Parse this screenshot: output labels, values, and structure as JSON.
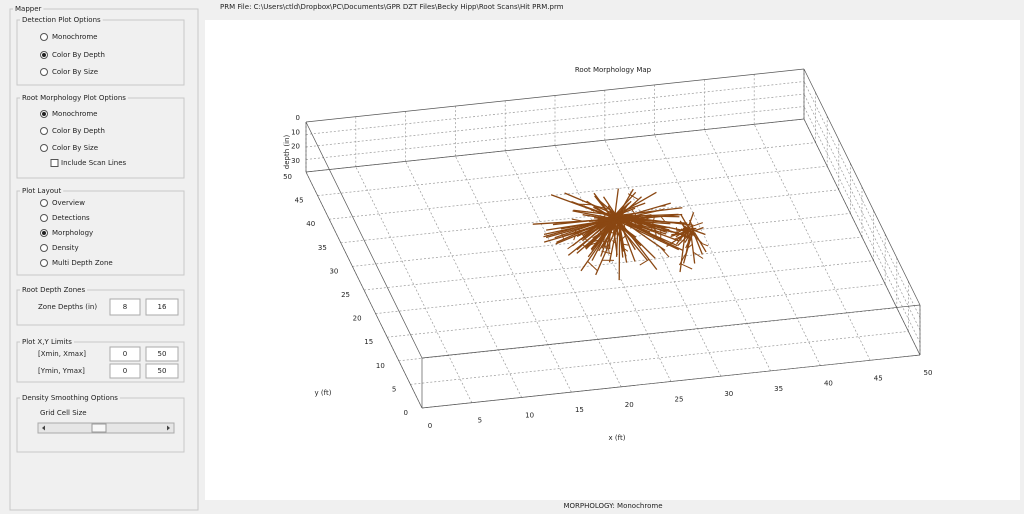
{
  "file_label": "PRM File: C:\\Users\\ctld\\Dropbox\\PC\\Documents\\GPR DZT Files\\Becky Hipp\\Root Scans\\Hit PRM.prm",
  "mapper": {
    "title": "Mapper",
    "detection_plot_options": {
      "title": "Detection Plot Options",
      "options": [
        "Monochrome",
        "Color By Depth",
        "Color By Size"
      ],
      "selected": 1
    },
    "root_morphology_plot_options": {
      "title": "Root Morphology Plot Options",
      "options": [
        "Monochrome",
        "Color By Depth",
        "Color By Size"
      ],
      "selected": 0,
      "checkbox": {
        "label": "Include Scan Lines",
        "checked": false
      }
    },
    "plot_layout": {
      "title": "Plot Layout",
      "options": [
        "Overview",
        "Detections",
        "Morphology",
        "Density",
        "Multi Depth Zone"
      ],
      "selected": 2
    },
    "root_depth_zones": {
      "title": "Root Depth Zones",
      "label": "Zone Depths (in)",
      "values": [
        8,
        16
      ]
    },
    "plot_xy_limits": {
      "title": "Plot X,Y Limits",
      "rows": [
        {
          "label": "[Xmin, Xmax]",
          "values": [
            0,
            50
          ]
        },
        {
          "label": "[Ymin, Ymax]",
          "values": [
            0,
            50
          ]
        }
      ]
    },
    "density_smoothing_options": {
      "title": "Density Smoothing Options",
      "label": "Grid Cell Size"
    }
  },
  "plot": {
    "title": "Root Morphology Map",
    "x_label": "x (ft)",
    "y_label": "y (ft)",
    "z_label": "depth (in)",
    "x_ticks": [
      "0",
      "5",
      "10",
      "15",
      "20",
      "25",
      "30",
      "35",
      "40",
      "45",
      "50"
    ],
    "y_ticks": [
      "0",
      "5",
      "10",
      "15",
      "20",
      "25",
      "30",
      "35",
      "40",
      "45",
      "50"
    ],
    "z_ticks": [
      "0",
      "10",
      "20",
      "30"
    ]
  },
  "status": "MORPHOLOGY: Monochrome"
}
